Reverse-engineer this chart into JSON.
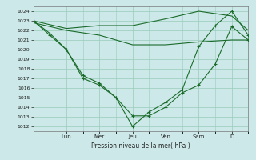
{
  "bg_color": "#cce8e8",
  "grid_color": "#99ccbb",
  "line_color": "#1a6b2a",
  "xlabel": "Pression niveau de la mer( hPa )",
  "ylim": [
    1011.5,
    1024.5
  ],
  "yticks": [
    1012,
    1013,
    1014,
    1015,
    1016,
    1017,
    1018,
    1019,
    1020,
    1021,
    1022,
    1023,
    1024
  ],
  "x_day_labels": [
    "Lun",
    "Mer",
    "Jeu",
    "Ven",
    "Sam",
    "D"
  ],
  "x_day_positions": [
    2,
    4,
    6,
    8,
    10,
    12
  ],
  "xlim": [
    0,
    13
  ],
  "series1_x": [
    0,
    1,
    2,
    3,
    4,
    5,
    6,
    7,
    8,
    9,
    10,
    11,
    12,
    13
  ],
  "series1_y": [
    1023.0,
    1021.7,
    1020.0,
    1017.3,
    1016.5,
    1015.0,
    1013.1,
    1013.1,
    1014.0,
    1015.5,
    1016.3,
    1018.5,
    1022.4,
    1021.0
  ],
  "series2_x": [
    0,
    1,
    2,
    3,
    4,
    5,
    6,
    7,
    8,
    9,
    10,
    11,
    12,
    13
  ],
  "series2_y": [
    1023.0,
    1021.5,
    1020.0,
    1017.0,
    1016.3,
    1015.0,
    1012.0,
    1013.5,
    1014.5,
    1015.8,
    1020.3,
    1022.5,
    1024.0,
    1021.5
  ],
  "series3_x": [
    0,
    2,
    4,
    6,
    8,
    10,
    12,
    13
  ],
  "series3_y": [
    1022.8,
    1022.0,
    1021.5,
    1020.5,
    1020.5,
    1020.8,
    1021.0,
    1021.0
  ],
  "series4_x": [
    0,
    2,
    4,
    6,
    8,
    10,
    12,
    13
  ],
  "series4_y": [
    1023.0,
    1022.2,
    1022.5,
    1022.5,
    1023.2,
    1024.0,
    1023.5,
    1022.0
  ]
}
